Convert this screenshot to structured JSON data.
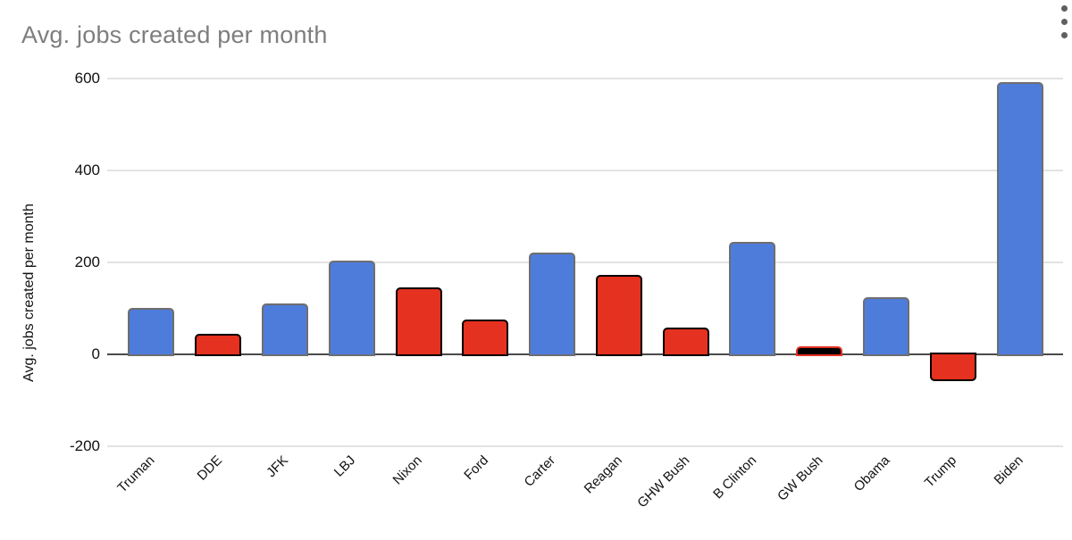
{
  "header": {
    "title": "Avg. jobs created per month"
  },
  "chart_data": {
    "type": "bar",
    "title": "Avg. jobs created per month",
    "xlabel": "",
    "ylabel": "Avg. jobs created per month",
    "categories": [
      "Truman",
      "DDE",
      "JFK",
      "LBJ",
      "Nixon",
      "Ford",
      "Carter",
      "Reagan",
      "GHW Bush",
      "B Clinton",
      "GW Bush",
      "Obama",
      "Trump",
      "Biden"
    ],
    "values": [
      98,
      40,
      107,
      200,
      142,
      72,
      218,
      168,
      54,
      240,
      14,
      121,
      -54,
      588
    ],
    "parties": [
      "D",
      "R",
      "D",
      "D",
      "R",
      "R",
      "D",
      "R",
      "R",
      "D",
      "R",
      "D",
      "R",
      "D"
    ],
    "point_fills": [
      "#4e7cdb",
      "#e5311f",
      "#4e7cdb",
      "#4e7cdb",
      "#e5311f",
      "#e5311f",
      "#4e7cdb",
      "#e5311f",
      "#e5311f",
      "#4e7cdb",
      "#000000",
      "#4e7cdb",
      "#e5311f",
      "#4e7cdb"
    ],
    "point_strokes": [
      "#6e6e6e",
      "#000000",
      "#6e6e6e",
      "#6e6e6e",
      "#000000",
      "#000000",
      "#6e6e6e",
      "#000000",
      "#000000",
      "#6e6e6e",
      "#e5311f",
      "#6e6e6e",
      "#000000",
      "#6e6e6e"
    ],
    "ylim": [
      -200,
      600
    ],
    "yticks": [
      -200,
      0,
      200,
      400,
      600
    ],
    "grid": true,
    "legend": "none",
    "colors": {
      "democrat_fill": "#4e7cdb",
      "republican_fill": "#e5311f",
      "gw_bush_fill": "#000000",
      "gridline": "#e3e3e3",
      "baseline": "#4a4a4a",
      "title_text": "#7e7e7e",
      "axis_text": "#111111"
    }
  }
}
